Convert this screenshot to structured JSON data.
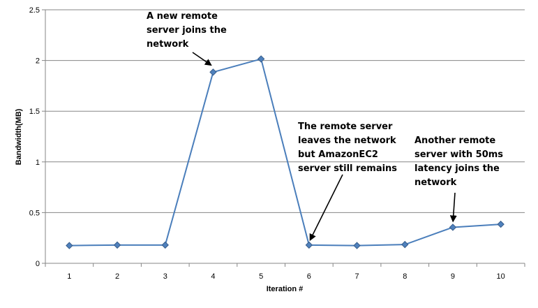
{
  "chart_data": {
    "type": "line",
    "x": [
      1,
      2,
      3,
      4,
      5,
      6,
      7,
      8,
      9,
      10
    ],
    "categories": [
      "1",
      "2",
      "3",
      "4",
      "5",
      "6",
      "7",
      "8",
      "9",
      "10"
    ],
    "series": [
      {
        "values": [
          0.175,
          0.18,
          0.18,
          1.885,
          2.015,
          0.18,
          0.175,
          0.185,
          0.355,
          0.385
        ],
        "color": "#4f81bd"
      }
    ],
    "title": "",
    "xlabel": "Iteration #",
    "ylabel": "Bandwidth(MB)",
    "ylim": [
      0,
      2.5
    ],
    "yticks": [
      "0",
      "0.5",
      "1",
      "1.5",
      "2",
      "2.5"
    ],
    "ytick_values": [
      0,
      0.5,
      1,
      1.5,
      2,
      2.5
    ],
    "grid": "horizontal",
    "legend": "none",
    "annotations": [
      {
        "lines": [
          "A new remote",
          "server joins the",
          "network"
        ],
        "target_x": 4,
        "target_y": 1.885
      },
      {
        "lines": [
          "The remote server",
          "leaves the network",
          "but AmazonEC2",
          "server still remains"
        ],
        "target_x": 6,
        "target_y": 0.18
      },
      {
        "lines": [
          "Another remote",
          "server with 50ms",
          "latency joins the",
          "network"
        ],
        "target_x": 9,
        "target_y": 0.355
      }
    ]
  }
}
